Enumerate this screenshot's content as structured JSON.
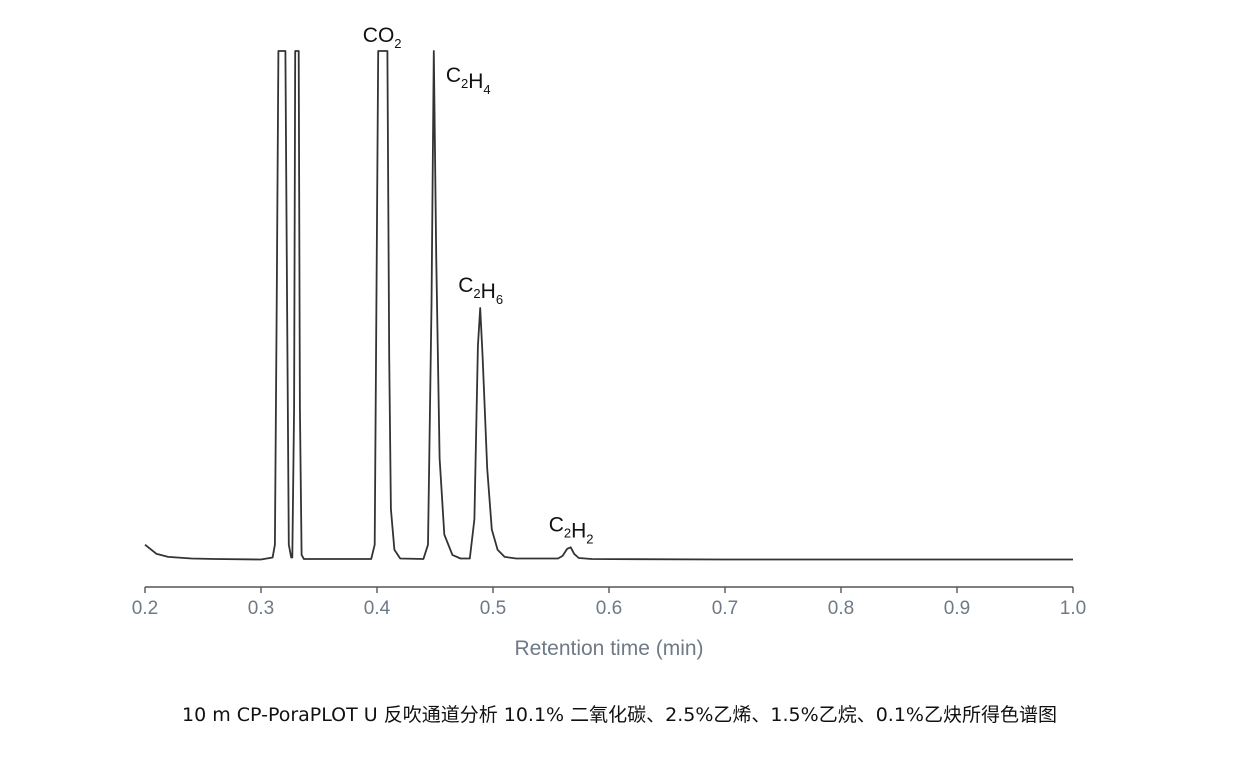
{
  "chart_data": {
    "type": "line",
    "title": "",
    "xlabel": "Retention time (min)",
    "ylabel": "",
    "xlim": [
      0.2,
      1.0
    ],
    "x_ticks": [
      "0.2",
      "0.3",
      "0.4",
      "0.5",
      "0.6",
      "0.7",
      "0.8",
      "0.9",
      "1.0"
    ],
    "grid": false,
    "series": [
      {
        "points": [
          [
            0.2,
            0.03
          ],
          [
            0.21,
            0.012
          ],
          [
            0.22,
            0.006
          ],
          [
            0.24,
            0.003
          ],
          [
            0.26,
            0.002
          ],
          [
            0.3,
            0.001
          ],
          [
            0.31,
            0.005
          ],
          [
            0.312,
            0.03
          ],
          [
            0.3135,
            0.5
          ],
          [
            0.315,
            1.0
          ],
          [
            0.321,
            1.0
          ],
          [
            0.3225,
            0.5
          ],
          [
            0.324,
            0.03
          ],
          [
            0.326,
            0.005
          ],
          [
            0.327,
            0.005
          ],
          [
            0.3285,
            0.3
          ],
          [
            0.3295,
            1.0
          ],
          [
            0.3325,
            1.0
          ],
          [
            0.3335,
            0.3
          ],
          [
            0.335,
            0.01
          ],
          [
            0.337,
            0.002
          ],
          [
            0.395,
            0.002
          ],
          [
            0.398,
            0.03
          ],
          [
            0.3995,
            0.5
          ],
          [
            0.401,
            1.0
          ],
          [
            0.409,
            1.0
          ],
          [
            0.4105,
            0.4
          ],
          [
            0.412,
            0.1
          ],
          [
            0.415,
            0.02
          ],
          [
            0.42,
            0.003
          ],
          [
            0.44,
            0.002
          ],
          [
            0.444,
            0.03
          ],
          [
            0.447,
            0.5
          ],
          [
            0.449,
            1.0
          ],
          [
            0.451,
            0.6
          ],
          [
            0.454,
            0.2
          ],
          [
            0.458,
            0.05
          ],
          [
            0.465,
            0.01
          ],
          [
            0.472,
            0.003
          ],
          [
            0.48,
            0.003
          ],
          [
            0.484,
            0.08
          ],
          [
            0.487,
            0.42
          ],
          [
            0.489,
            0.495
          ],
          [
            0.491,
            0.4
          ],
          [
            0.495,
            0.18
          ],
          [
            0.499,
            0.06
          ],
          [
            0.504,
            0.02
          ],
          [
            0.51,
            0.006
          ],
          [
            0.52,
            0.003
          ],
          [
            0.556,
            0.003
          ],
          [
            0.56,
            0.008
          ],
          [
            0.564,
            0.022
          ],
          [
            0.567,
            0.025
          ],
          [
            0.57,
            0.012
          ],
          [
            0.574,
            0.004
          ],
          [
            0.585,
            0.002
          ],
          [
            0.7,
            0.001
          ],
          [
            0.85,
            0.001
          ],
          [
            1.0,
            0.001
          ]
        ]
      }
    ],
    "peak_annotations": [
      {
        "base": "CO",
        "sub1": "2",
        "mid": "",
        "sub2": "",
        "x": 0.405,
        "y": 1.0
      },
      {
        "base": "C",
        "sub1": "2",
        "mid": "H",
        "sub2": "4",
        "x": 0.449,
        "y": 1.0
      },
      {
        "base": "C",
        "sub1": "2",
        "mid": "H",
        "sub2": "6",
        "x": 0.489,
        "y": 0.495
      },
      {
        "base": "C",
        "sub1": "2",
        "mid": "H",
        "sub2": "2",
        "x": 0.567,
        "y": 0.025
      }
    ]
  },
  "caption": "10 m CP-PoraPLOT U 反吹通道分析 10.1% 二氧化碳、2.5%乙烯、1.5%乙烷、0.1%乙炔所得色谱图"
}
